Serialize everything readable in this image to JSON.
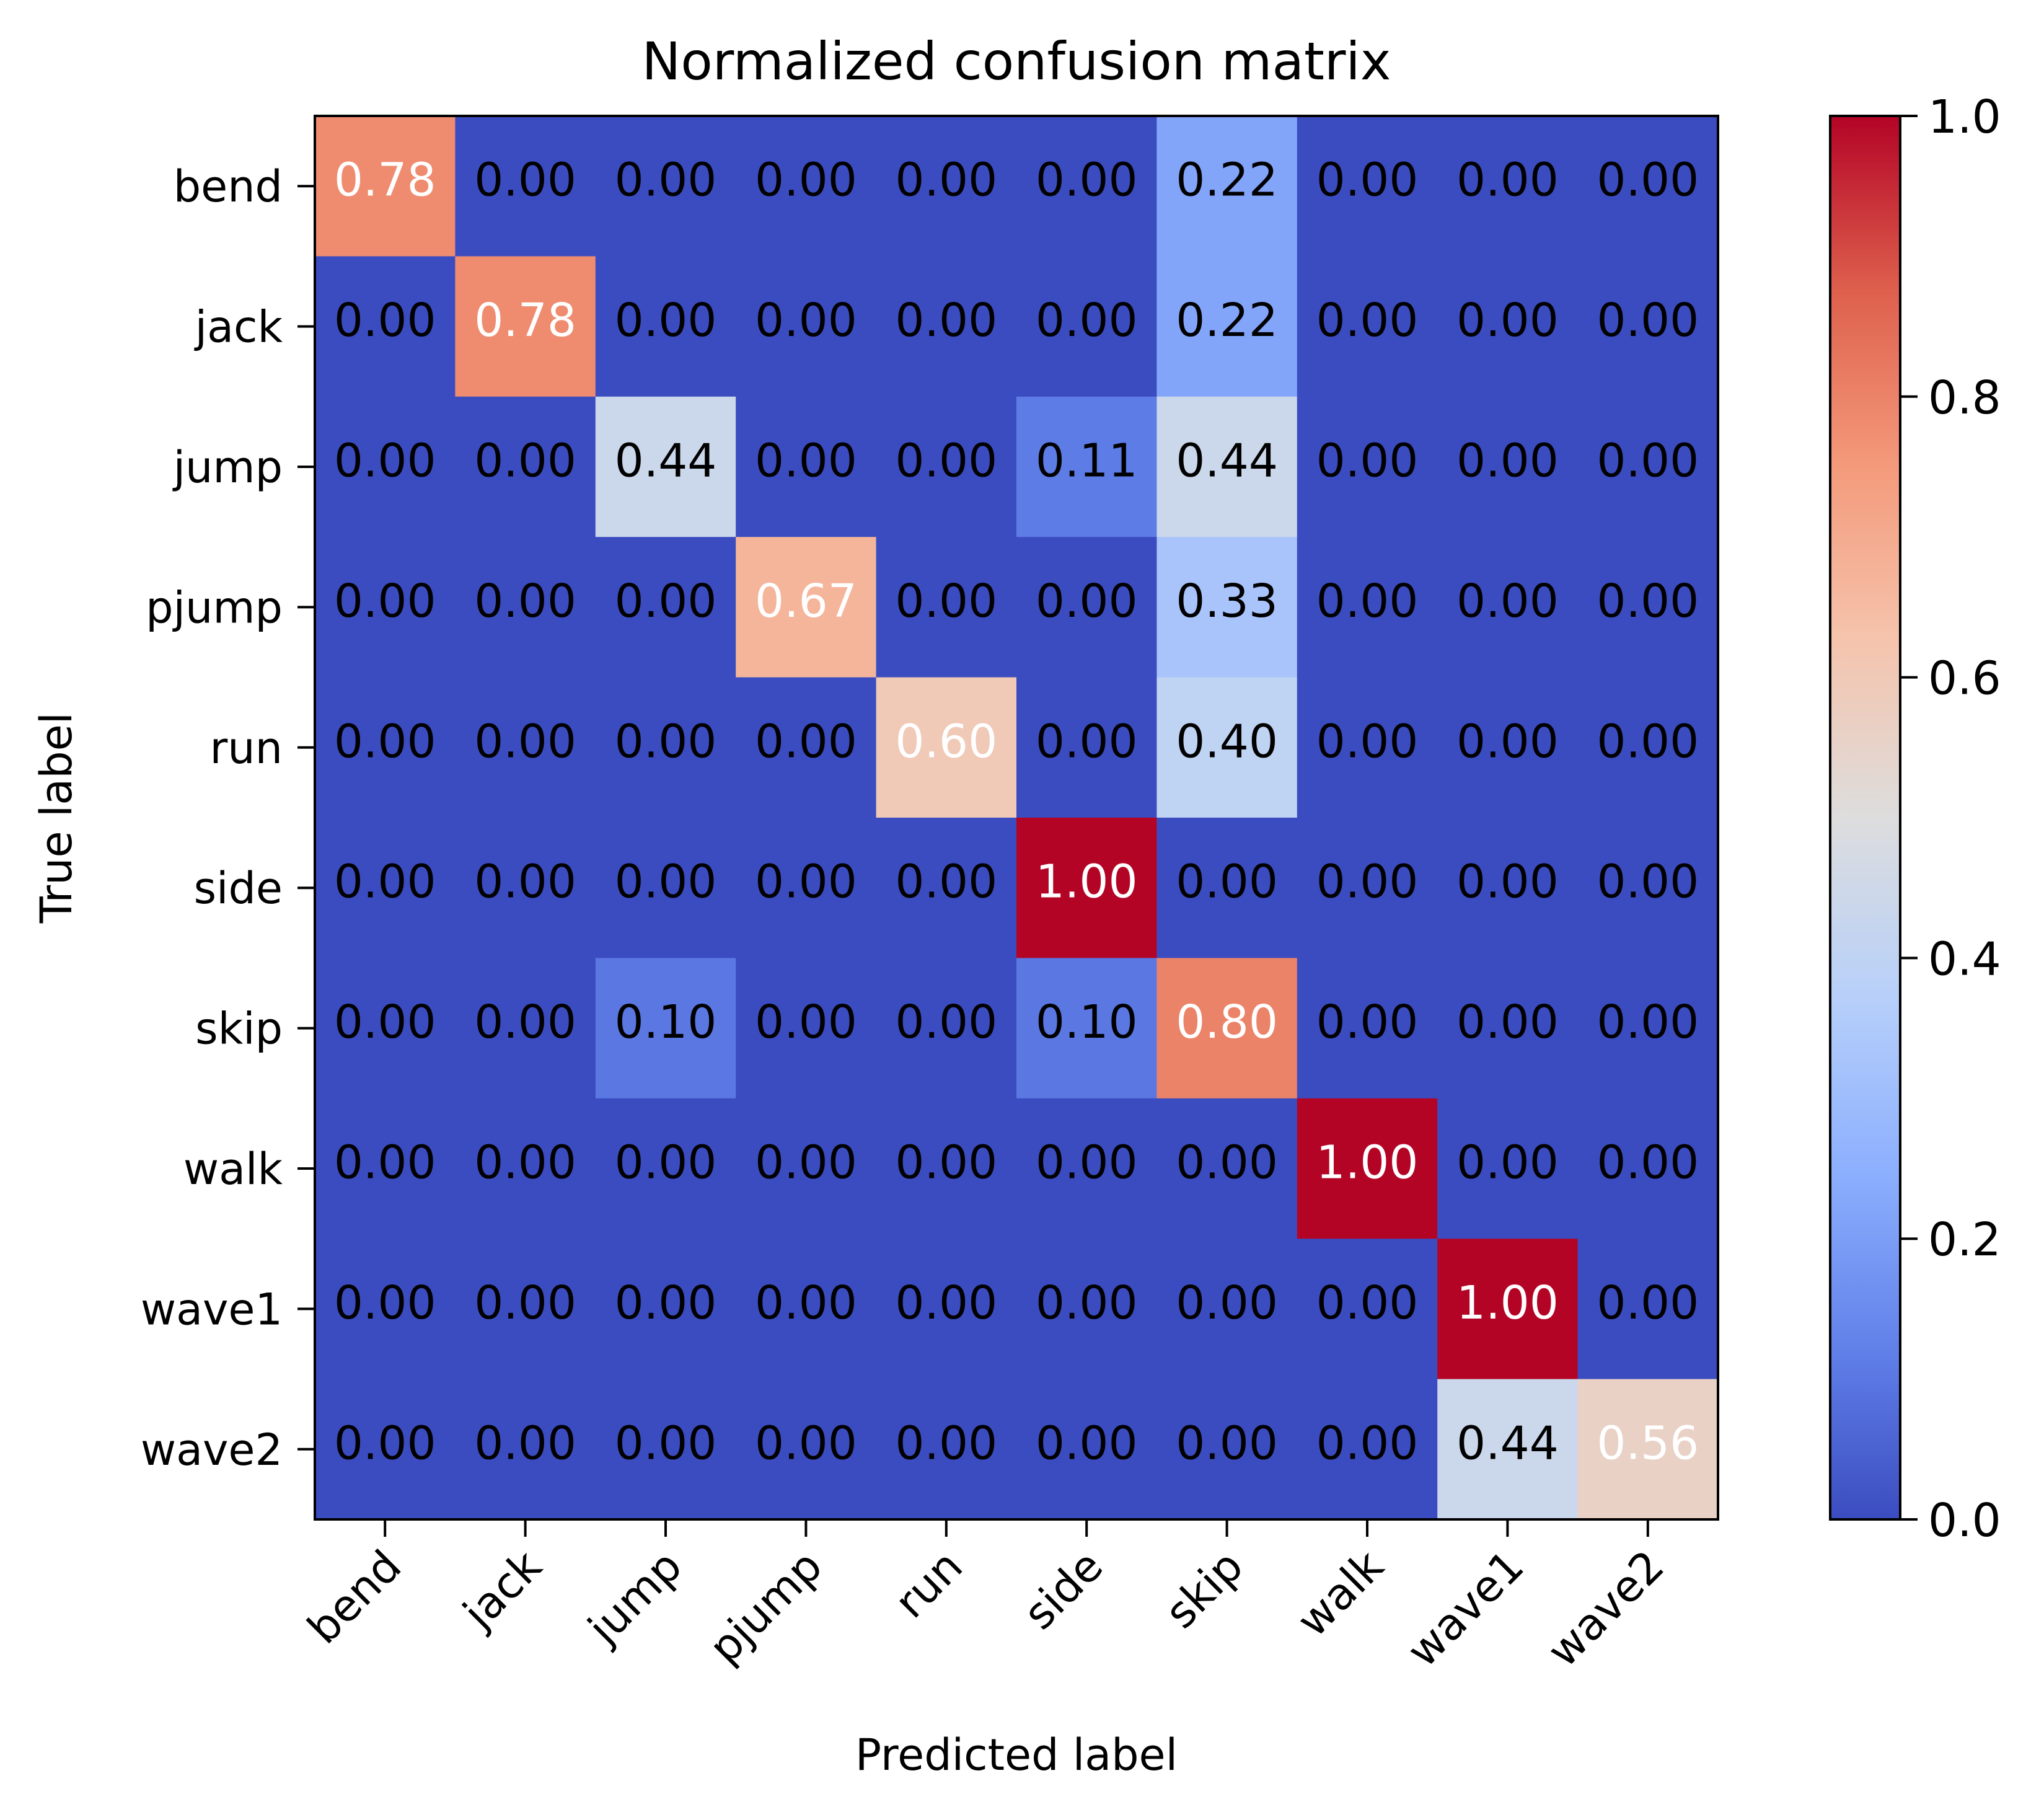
{
  "chart_data": {
    "type": "heatmap",
    "title": "Normalized confusion matrix",
    "xlabel": "Predicted label",
    "ylabel": "True label",
    "x_categories": [
      "bend",
      "jack",
      "jump",
      "pjump",
      "run",
      "side",
      "skip",
      "walk",
      "wave1",
      "wave2"
    ],
    "y_categories": [
      "bend",
      "jack",
      "jump",
      "pjump",
      "run",
      "side",
      "skip",
      "walk",
      "wave1",
      "wave2"
    ],
    "values": [
      [
        0.78,
        0.0,
        0.0,
        0.0,
        0.0,
        0.0,
        0.22,
        0.0,
        0.0,
        0.0
      ],
      [
        0.0,
        0.78,
        0.0,
        0.0,
        0.0,
        0.0,
        0.22,
        0.0,
        0.0,
        0.0
      ],
      [
        0.0,
        0.0,
        0.44,
        0.0,
        0.0,
        0.11,
        0.44,
        0.0,
        0.0,
        0.0
      ],
      [
        0.0,
        0.0,
        0.0,
        0.67,
        0.0,
        0.0,
        0.33,
        0.0,
        0.0,
        0.0
      ],
      [
        0.0,
        0.0,
        0.0,
        0.0,
        0.6,
        0.0,
        0.4,
        0.0,
        0.0,
        0.0
      ],
      [
        0.0,
        0.0,
        0.0,
        0.0,
        0.0,
        1.0,
        0.0,
        0.0,
        0.0,
        0.0
      ],
      [
        0.0,
        0.0,
        0.1,
        0.0,
        0.0,
        0.1,
        0.8,
        0.0,
        0.0,
        0.0
      ],
      [
        0.0,
        0.0,
        0.0,
        0.0,
        0.0,
        0.0,
        0.0,
        1.0,
        0.0,
        0.0
      ],
      [
        0.0,
        0.0,
        0.0,
        0.0,
        0.0,
        0.0,
        0.0,
        0.0,
        1.0,
        0.0
      ],
      [
        0.0,
        0.0,
        0.0,
        0.0,
        0.0,
        0.0,
        0.0,
        0.0,
        0.44,
        0.56
      ]
    ],
    "colormap": "coolwarm",
    "colorbar": {
      "range": [
        0.0,
        1.0
      ],
      "ticks": [
        "0.0",
        "0.2",
        "0.4",
        "0.6",
        "0.8",
        "1.0"
      ]
    }
  }
}
